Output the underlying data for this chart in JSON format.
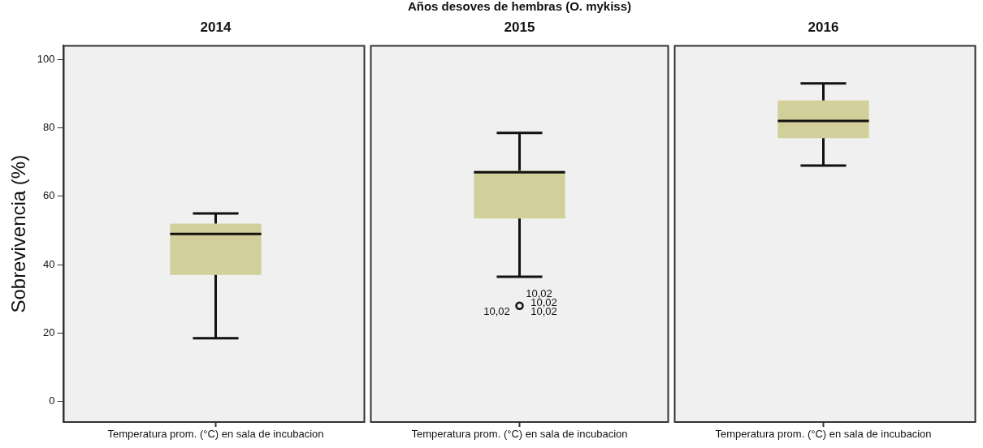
{
  "chart_data": {
    "type": "box",
    "xlabel": "Años desoves de hembras (O. mykiss)",
    "ylabel": "Sobrevivencia (%)",
    "categories": [
      "2014",
      "2015",
      "2016"
    ],
    "color": "#d3cf9a",
    "ylim": [
      -6,
      104
    ],
    "yticks": [
      0,
      20,
      40,
      60,
      80,
      100
    ],
    "boxes": [
      {
        "low": 18.5,
        "q1": 37,
        "median": 49,
        "q3": 52,
        "high": 55
      },
      {
        "low": 36.5,
        "q1": 53.5,
        "median": 67,
        "q3": 67.5,
        "high": 78.5,
        "outliers": [
          28
        ]
      },
      {
        "low": 69,
        "q1": 77,
        "median": 82,
        "q3": 88,
        "high": 93
      }
    ],
    "annotations": [
      "Temperatura prom. (°C) en sala de incubacion",
      "Temperatura prom. (°C) en sala de incubacion",
      "Temperatura prom. (°C) en sala de incubacion",
      "10,02",
      "10,02",
      "10,02",
      "10,02"
    ]
  }
}
